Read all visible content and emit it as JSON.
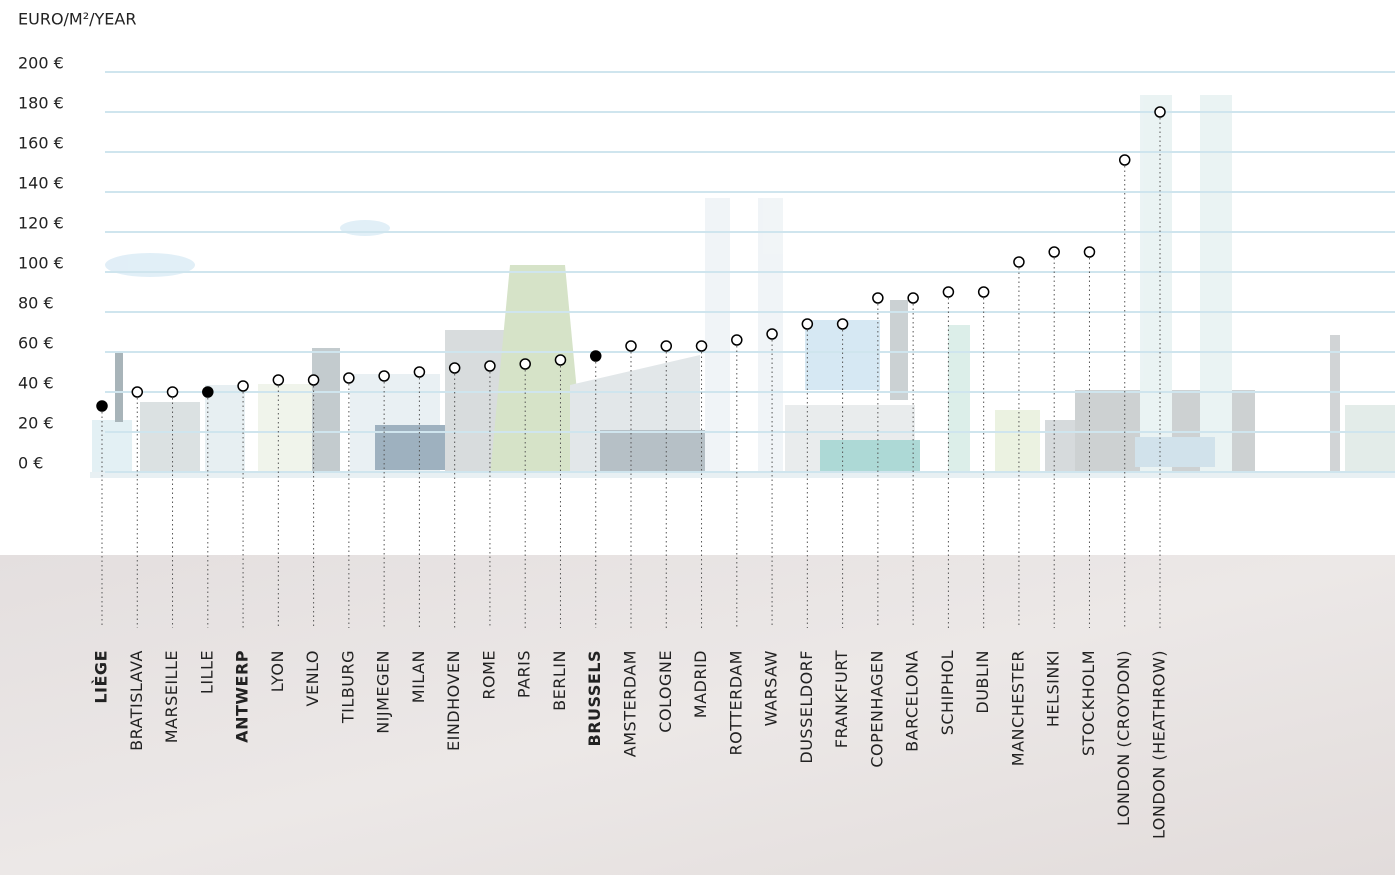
{
  "chart_data": {
    "type": "dot",
    "y_axis_title": "EURO/M²/YEAR",
    "categories": [
      "LIÈGE",
      "BRATISLAVA",
      "MARSEILLE",
      "LILLE",
      "ANTWERP",
      "LYON",
      "VENLO",
      "TILBURG",
      "NIJMEGEN",
      "MILAN",
      "EINDHOVEN",
      "ROME",
      "PARIS",
      "BERLIN",
      "BRUSSELS",
      "AMSTERDAM",
      "COLOGNE",
      "MADRID",
      "ROTTERDAM",
      "WARSAW",
      "DUSSELDORF",
      "FRANKFURT",
      "COPENHAGEN",
      "BARCELONA",
      "SCHIPHOL",
      "DUBLIN",
      "MANCHESTER",
      "HELSINKI",
      "STOCKHOLM",
      "LONDON (CROYDON)",
      "LONDON (HEATHROW)"
    ],
    "values": [
      33,
      40,
      40,
      40,
      43,
      46,
      46,
      47,
      48,
      50,
      52,
      53,
      54,
      56,
      58,
      63,
      63,
      63,
      66,
      69,
      74,
      74,
      87,
      87,
      90,
      90,
      105,
      110,
      110,
      156,
      180
    ],
    "filled_markers": [
      0,
      3,
      14
    ],
    "bold_labels": [
      0,
      4,
      14
    ],
    "color": "#000000",
    "ylim": [
      0,
      200
    ],
    "yticks": [
      {
        "value": 0,
        "label": "0 €"
      },
      {
        "value": 20,
        "label": "20 €"
      },
      {
        "value": 40,
        "label": "40 €"
      },
      {
        "value": 60,
        "label": "60 €"
      },
      {
        "value": 80,
        "label": "80 €"
      },
      {
        "value": 100,
        "label": "100 €"
      },
      {
        "value": 120,
        "label": "120 €"
      },
      {
        "value": 140,
        "label": "140 €"
      },
      {
        "value": 160,
        "label": "160 €"
      },
      {
        "value": 180,
        "label": "180 €"
      },
      {
        "value": 200,
        "label": "200 €"
      }
    ],
    "grid": true,
    "grid_color": "#cfe5ee"
  }
}
